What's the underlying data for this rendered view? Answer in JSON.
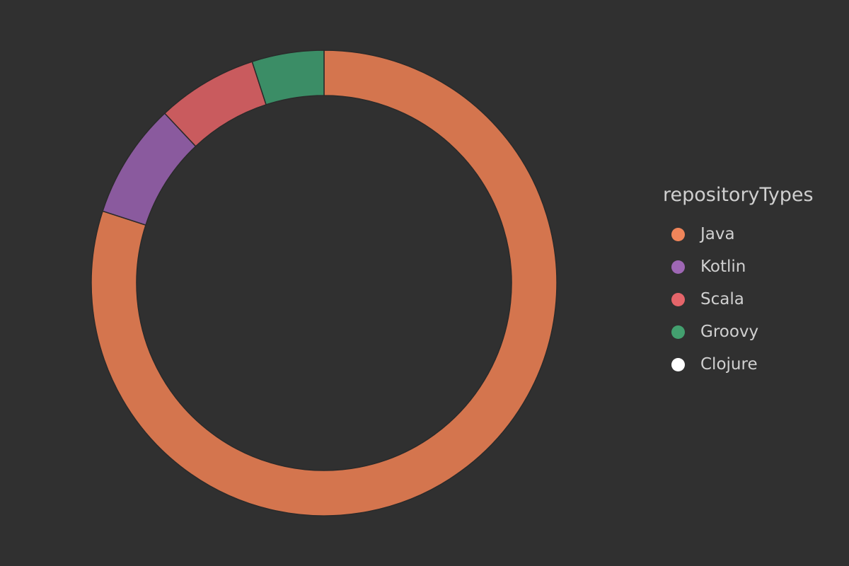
{
  "chart_data": {
    "type": "pie",
    "variant": "donut",
    "legend_title": "repositoryTypes",
    "legend_position": "right",
    "slices": [
      {
        "label": "Java",
        "value": 80,
        "color": "#d4754e",
        "legend_color": "#f0855a"
      },
      {
        "label": "Kotlin",
        "value": 8,
        "color": "#8a5a9e",
        "legend_color": "#9e67b4"
      },
      {
        "label": "Scala",
        "value": 7,
        "color": "#c95b5e",
        "legend_color": "#e5656a"
      },
      {
        "label": "Groovy",
        "value": 5,
        "color": "#3b8d66",
        "legend_color": "#43a06f"
      },
      {
        "label": "Clojure",
        "value": 0,
        "color": "#ffffff",
        "legend_color": "#ffffff"
      }
    ]
  }
}
